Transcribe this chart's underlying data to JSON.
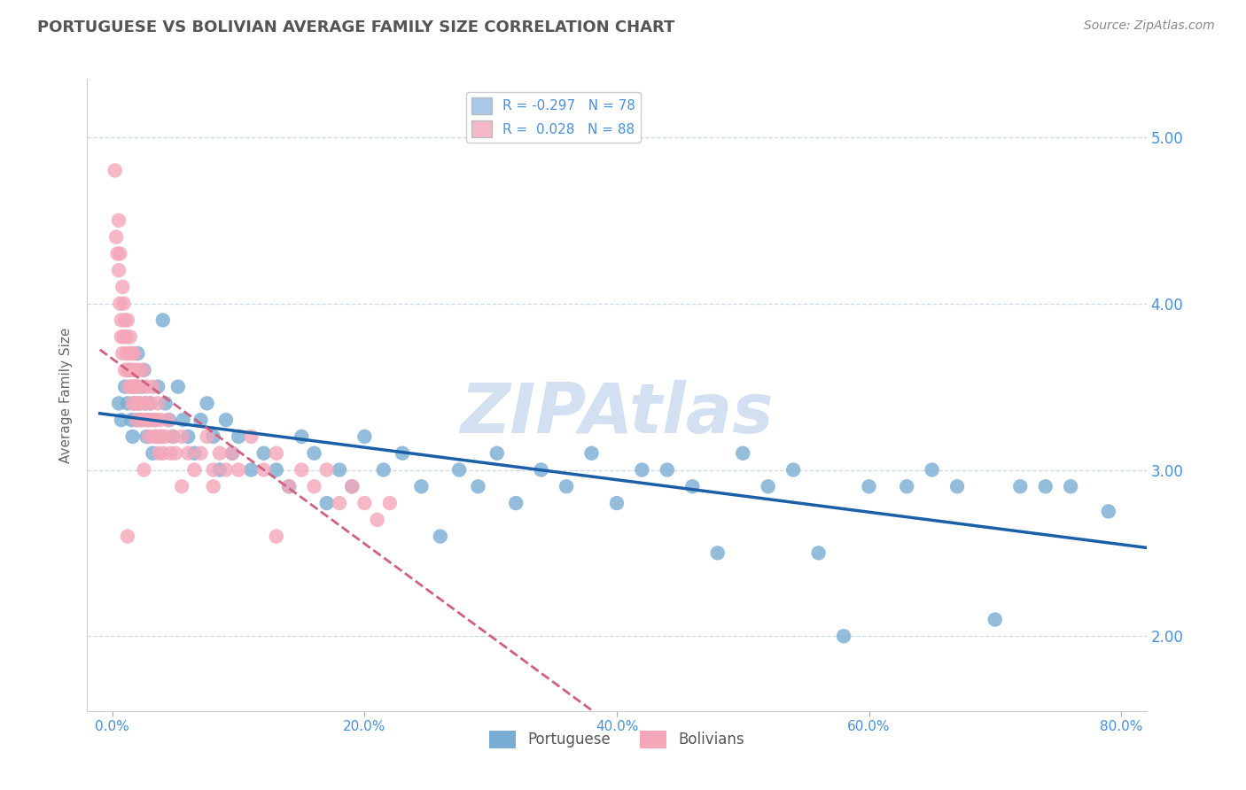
{
  "title": "PORTUGUESE VS BOLIVIAN AVERAGE FAMILY SIZE CORRELATION CHART",
  "source_text": "Source: ZipAtlas.com",
  "ylabel": "Average Family Size",
  "xlabel_ticks": [
    "0.0%",
    "20.0%",
    "40.0%",
    "60.0%",
    "80.0%"
  ],
  "xlabel_vals": [
    0.0,
    0.2,
    0.4,
    0.6,
    0.8
  ],
  "ytick_labels": [
    "2.00",
    "3.00",
    "4.00",
    "5.00"
  ],
  "ytick_vals": [
    2.0,
    3.0,
    4.0,
    5.0
  ],
  "xlim": [
    -0.02,
    0.82
  ],
  "ylim": [
    1.55,
    5.35
  ],
  "portuguese_R": -0.297,
  "portuguese_N": 78,
  "bolivian_R": 0.028,
  "bolivian_N": 88,
  "portuguese_color": "#7aadd4",
  "bolivian_color": "#f4a7b9",
  "portuguese_line_color": "#1a5fa8",
  "bolivian_line_color": "#d06080",
  "background_color": "#ffffff",
  "grid_color": "#c8d8e8",
  "watermark_text": "ZIPAtlas",
  "watermark_color": "#aec8e8",
  "title_color": "#555555",
  "title_fontsize": 13,
  "right_axis_color": "#4a90d9",
  "legend_box_color_portuguese": "#aac8e8",
  "legend_box_color_bolivian": "#f4b8c8",
  "portuguese_x": [
    0.005,
    0.007,
    0.01,
    0.012,
    0.013,
    0.015,
    0.016,
    0.017,
    0.018,
    0.019,
    0.02,
    0.021,
    0.022,
    0.023,
    0.025,
    0.026,
    0.027,
    0.028,
    0.03,
    0.032,
    0.034,
    0.036,
    0.038,
    0.04,
    0.042,
    0.045,
    0.048,
    0.052,
    0.056,
    0.06,
    0.065,
    0.07,
    0.075,
    0.08,
    0.085,
    0.09,
    0.095,
    0.1,
    0.11,
    0.12,
    0.13,
    0.14,
    0.15,
    0.16,
    0.17,
    0.18,
    0.19,
    0.2,
    0.215,
    0.23,
    0.245,
    0.26,
    0.275,
    0.29,
    0.305,
    0.32,
    0.34,
    0.36,
    0.38,
    0.4,
    0.42,
    0.44,
    0.46,
    0.48,
    0.5,
    0.52,
    0.54,
    0.56,
    0.58,
    0.6,
    0.63,
    0.65,
    0.67,
    0.7,
    0.72,
    0.74,
    0.76,
    0.79
  ],
  "portuguese_y": [
    3.4,
    3.3,
    3.5,
    3.4,
    3.6,
    3.3,
    3.2,
    3.4,
    3.5,
    3.3,
    3.7,
    3.4,
    3.3,
    3.5,
    3.6,
    3.4,
    3.2,
    3.3,
    3.4,
    3.1,
    3.3,
    3.5,
    3.2,
    3.9,
    3.4,
    3.3,
    3.2,
    3.5,
    3.3,
    3.2,
    3.1,
    3.3,
    3.4,
    3.2,
    3.0,
    3.3,
    3.1,
    3.2,
    3.0,
    3.1,
    3.0,
    2.9,
    3.2,
    3.1,
    2.8,
    3.0,
    2.9,
    3.2,
    3.0,
    3.1,
    2.9,
    2.6,
    3.0,
    2.9,
    3.1,
    2.8,
    3.0,
    2.9,
    3.1,
    2.8,
    3.0,
    3.0,
    2.9,
    2.5,
    3.1,
    2.9,
    3.0,
    2.5,
    2.0,
    2.9,
    2.9,
    3.0,
    2.9,
    2.1,
    2.9,
    2.9,
    2.9,
    2.75
  ],
  "bolivian_x": [
    0.002,
    0.003,
    0.004,
    0.005,
    0.005,
    0.006,
    0.006,
    0.007,
    0.007,
    0.008,
    0.008,
    0.009,
    0.009,
    0.01,
    0.01,
    0.011,
    0.011,
    0.012,
    0.012,
    0.013,
    0.013,
    0.014,
    0.014,
    0.015,
    0.015,
    0.016,
    0.016,
    0.017,
    0.017,
    0.018,
    0.018,
    0.019,
    0.019,
    0.02,
    0.02,
    0.021,
    0.022,
    0.023,
    0.024,
    0.025,
    0.026,
    0.027,
    0.028,
    0.029,
    0.03,
    0.031,
    0.032,
    0.033,
    0.034,
    0.035,
    0.036,
    0.037,
    0.038,
    0.039,
    0.04,
    0.042,
    0.044,
    0.046,
    0.048,
    0.05,
    0.055,
    0.06,
    0.065,
    0.07,
    0.075,
    0.08,
    0.085,
    0.09,
    0.095,
    0.1,
    0.11,
    0.12,
    0.13,
    0.14,
    0.15,
    0.16,
    0.17,
    0.18,
    0.19,
    0.2,
    0.21,
    0.22,
    0.13,
    0.08,
    0.055,
    0.035,
    0.025,
    0.012
  ],
  "bolivian_y": [
    4.8,
    4.4,
    4.3,
    4.5,
    4.2,
    4.3,
    4.0,
    3.9,
    3.8,
    4.1,
    3.7,
    4.0,
    3.8,
    3.9,
    3.6,
    3.8,
    3.7,
    3.6,
    3.9,
    3.7,
    3.5,
    3.6,
    3.8,
    3.7,
    3.5,
    3.6,
    3.4,
    3.7,
    3.5,
    3.6,
    3.4,
    3.5,
    3.3,
    3.6,
    3.4,
    3.5,
    3.4,
    3.3,
    3.6,
    3.3,
    3.4,
    3.5,
    3.3,
    3.2,
    3.4,
    3.3,
    3.5,
    3.2,
    3.3,
    3.2,
    3.4,
    3.1,
    3.3,
    3.2,
    3.1,
    3.2,
    3.3,
    3.1,
    3.2,
    3.1,
    3.2,
    3.1,
    3.0,
    3.1,
    3.2,
    3.0,
    3.1,
    3.0,
    3.1,
    3.0,
    3.2,
    3.0,
    3.1,
    2.9,
    3.0,
    2.9,
    3.0,
    2.8,
    2.9,
    2.8,
    2.7,
    2.8,
    2.6,
    2.9,
    2.9,
    3.2,
    3.0,
    2.6
  ]
}
